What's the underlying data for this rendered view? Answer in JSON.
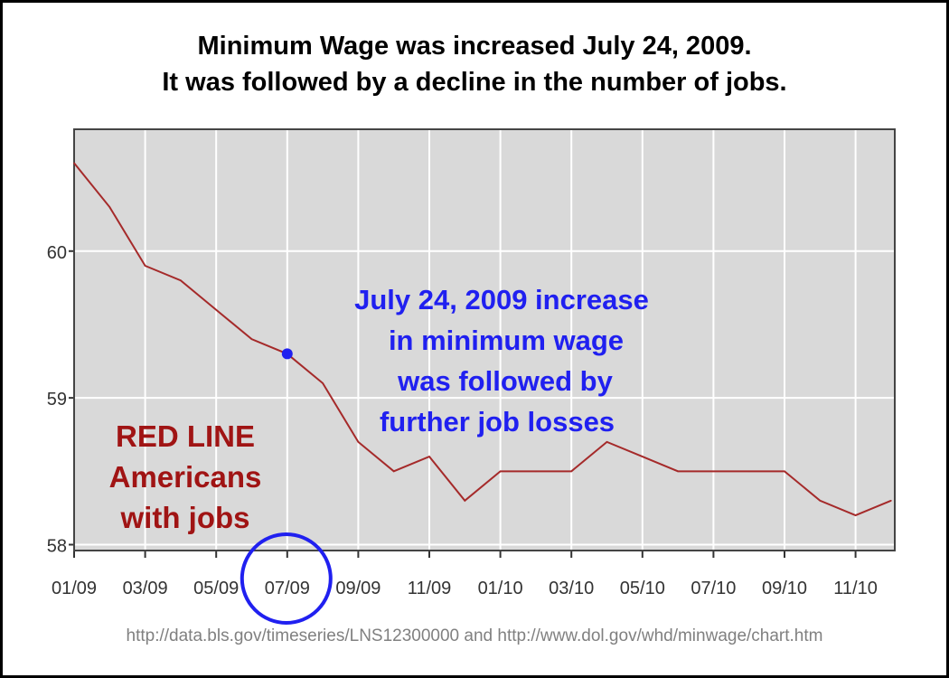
{
  "title_line1": "Minimum Wage was increased July 24, 2009.",
  "title_line2": "It was followed by a decline in the number of jobs.",
  "source": "http://data.bls.gov/timeseries/LNS12300000  and  http://www.dol.gov/whd/minwage/chart.htm",
  "annotation_blue": [
    "July 24, 2009 increase",
    "in minimum wage",
    "was followed by",
    "further job losses"
  ],
  "annotation_red": [
    "RED LINE",
    "Americans",
    "with jobs"
  ],
  "colors": {
    "line": "#a52a2a",
    "marker": "#2020f0",
    "plot_bg": "#d9d9d9",
    "grid": "#ffffff",
    "red_text": "#a01414"
  },
  "chart_data": {
    "type": "line",
    "title": "Minimum Wage was increased July 24, 2009. It was followed by a decline in the number of jobs.",
    "xlabel": "",
    "ylabel": "",
    "x": [
      "01/09",
      "02/09",
      "03/09",
      "04/09",
      "05/09",
      "06/09",
      "07/09",
      "08/09",
      "09/09",
      "10/09",
      "11/09",
      "12/09",
      "01/10",
      "02/10",
      "03/10",
      "04/10",
      "05/10",
      "06/10",
      "07/10",
      "08/10",
      "09/10",
      "10/10",
      "11/10",
      "12/10"
    ],
    "series": [
      {
        "name": "Americans with jobs",
        "values": [
          60.6,
          60.3,
          59.9,
          59.8,
          59.6,
          59.4,
          59.3,
          59.1,
          58.7,
          58.5,
          58.6,
          58.3,
          58.5,
          58.5,
          58.5,
          58.7,
          58.6,
          58.5,
          58.5,
          58.5,
          58.5,
          58.3,
          58.2,
          58.3
        ]
      }
    ],
    "x_tick_labels": [
      "01/09",
      "03/09",
      "05/09",
      "07/09",
      "09/09",
      "11/09",
      "01/10",
      "03/10",
      "05/10",
      "07/10",
      "09/10",
      "11/10"
    ],
    "y_ticks": [
      58,
      59,
      60
    ],
    "y_tick_labels": [
      "58",
      "59",
      "60"
    ],
    "ylim": [
      57.96,
      60.83
    ],
    "highlight": {
      "x": "07/09",
      "value": 59.3
    },
    "grid": true
  }
}
